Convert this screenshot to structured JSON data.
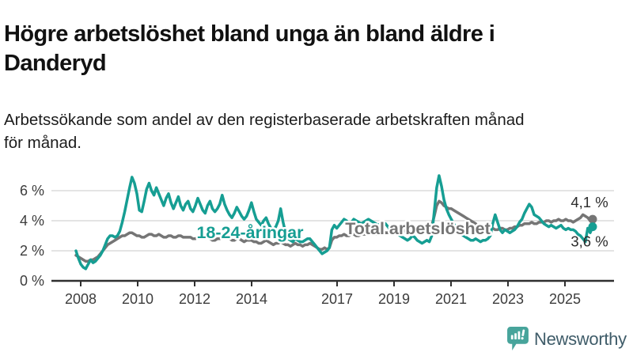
{
  "header": {
    "title_lines": [
      "Högre arbetslöshet bland unga än bland äldre i",
      "Danderyd"
    ],
    "subtitle_lines": [
      "Arbetssökande som andel av den registerbaserade arbetskraften månad",
      "för månad."
    ]
  },
  "footer": {
    "brand": "Newsworthy"
  },
  "colors": {
    "grid": "#dcdcdc",
    "axis": "#2f2f2f",
    "tick_text": "#3c3c3c",
    "annotation_text": "#2b2b2b",
    "brand_icon": "#47a49b",
    "brand_text": "#3f5c69"
  },
  "chart_data": {
    "type": "line",
    "unit": "percent",
    "frequency": "monthly",
    "start": "2008-01",
    "end": "2025-09",
    "grid": true,
    "legend_position": "inline-labels",
    "y_axis": {
      "tick_labels": [
        "0 %",
        "2 %",
        "4 %",
        "6 %"
      ],
      "tick_values": [
        0,
        2,
        4,
        6
      ],
      "max": 7.5
    },
    "x_axis": {
      "tick_years": [
        2008,
        2010,
        2012,
        2014,
        2017,
        2019,
        2021,
        2023,
        2025
      ]
    },
    "series": [
      {
        "name": "18-24-åringar",
        "color": "#169e93",
        "end_label": "3,6 %",
        "end_value": 3.6,
        "values": [
          2.0,
          1.5,
          1.1,
          0.9,
          0.8,
          1.1,
          1.4,
          1.2,
          1.3,
          1.5,
          1.7,
          2.0,
          2.4,
          2.8,
          3.0,
          3.0,
          2.9,
          3.0,
          3.3,
          3.9,
          4.6,
          5.4,
          6.2,
          6.9,
          6.5,
          5.8,
          4.7,
          4.6,
          5.3,
          6.1,
          6.5,
          6.0,
          5.7,
          6.2,
          5.8,
          5.4,
          5.0,
          5.5,
          5.8,
          5.2,
          4.8,
          5.2,
          5.6,
          5.0,
          4.7,
          5.1,
          5.3,
          4.8,
          4.6,
          5.0,
          5.5,
          5.1,
          4.7,
          4.5,
          5.0,
          5.3,
          4.8,
          4.6,
          4.8,
          5.1,
          5.7,
          5.1,
          4.7,
          4.4,
          4.2,
          4.5,
          4.9,
          4.6,
          4.3,
          4.1,
          4.3,
          4.7,
          5.2,
          4.6,
          4.1,
          3.9,
          3.7,
          4.0,
          4.2,
          3.8,
          3.5,
          3.4,
          3.6,
          4.0,
          4.8,
          3.9,
          3.2,
          2.8,
          2.7,
          2.6,
          2.8,
          2.7,
          2.6,
          2.6,
          2.7,
          2.8,
          2.8,
          2.6,
          2.4,
          2.2,
          2.0,
          1.8,
          1.9,
          2.0,
          2.2,
          3.4,
          3.7,
          3.5,
          3.7,
          3.9,
          4.1,
          4.0,
          3.8,
          3.9,
          4.1,
          4.0,
          3.9,
          3.8,
          3.9,
          4.0,
          4.1,
          4.0,
          3.9,
          3.8,
          3.7,
          3.8,
          3.9,
          3.8,
          3.6,
          3.4,
          3.3,
          3.2,
          3.1,
          3.0,
          2.9,
          2.8,
          2.7,
          2.8,
          3.0,
          2.9,
          2.7,
          2.6,
          2.5,
          2.6,
          2.7,
          2.6,
          3.0,
          4.6,
          6.2,
          7.0,
          6.3,
          5.4,
          4.8,
          4.4,
          4.1,
          3.8,
          3.5,
          3.3,
          3.1,
          3.0,
          2.9,
          2.8,
          2.7,
          2.7,
          2.8,
          2.7,
          2.6,
          2.7,
          2.7,
          2.8,
          3.0,
          3.8,
          4.4,
          3.9,
          3.4,
          3.2,
          3.4,
          3.3,
          3.2,
          3.3,
          3.4,
          3.6,
          3.9,
          4.1,
          4.5,
          4.8,
          5.1,
          4.9,
          4.4,
          4.3,
          4.2,
          4.0,
          3.8,
          3.7,
          3.6,
          3.7,
          3.6,
          3.5,
          3.6,
          3.7,
          3.5,
          3.4,
          3.5,
          3.4,
          3.4,
          3.3,
          3.1,
          3.0,
          2.8,
          2.6,
          3.5,
          3.2,
          3.6
        ]
      },
      {
        "name": "Total arbetslöshet",
        "color": "#757575",
        "end_label": "4,1 %",
        "end_value": 4.1,
        "values": [
          1.7,
          1.6,
          1.5,
          1.4,
          1.3,
          1.3,
          1.4,
          1.4,
          1.5,
          1.6,
          1.8,
          2.0,
          2.2,
          2.4,
          2.5,
          2.6,
          2.7,
          2.8,
          2.9,
          3.0,
          3.0,
          3.1,
          3.2,
          3.2,
          3.1,
          3.0,
          3.0,
          2.9,
          2.9,
          3.0,
          3.1,
          3.1,
          3.0,
          3.0,
          3.1,
          3.0,
          2.9,
          2.9,
          3.0,
          3.0,
          2.9,
          2.9,
          3.0,
          3.0,
          2.9,
          2.9,
          2.9,
          2.9,
          2.8,
          2.8,
          2.9,
          2.9,
          2.8,
          2.8,
          2.9,
          2.8,
          2.7,
          2.7,
          2.8,
          2.8,
          2.9,
          2.9,
          2.8,
          2.8,
          2.7,
          2.7,
          2.8,
          2.8,
          2.7,
          2.6,
          2.7,
          2.7,
          2.7,
          2.6,
          2.6,
          2.5,
          2.5,
          2.6,
          2.7,
          2.6,
          2.5,
          2.4,
          2.5,
          2.5,
          2.6,
          2.5,
          2.4,
          2.4,
          2.3,
          2.4,
          2.5,
          2.4,
          2.4,
          2.3,
          2.4,
          2.4,
          2.5,
          2.4,
          2.3,
          2.2,
          2.1,
          2.1,
          2.2,
          2.1,
          2.2,
          2.7,
          2.9,
          2.9,
          3.0,
          3.0,
          3.1,
          3.0,
          3.0,
          3.1,
          3.1,
          3.0,
          3.0,
          3.1,
          3.1,
          3.1,
          3.2,
          3.2,
          3.1,
          3.1,
          3.2,
          3.2,
          3.3,
          3.2,
          3.2,
          3.3,
          3.3,
          3.3,
          3.3,
          3.4,
          3.4,
          3.3,
          3.4,
          3.4,
          3.5,
          3.4,
          3.4,
          3.5,
          3.5,
          3.4,
          3.4,
          3.5,
          3.7,
          4.3,
          5.0,
          5.3,
          5.2,
          5.0,
          4.9,
          4.8,
          4.8,
          4.7,
          4.6,
          4.5,
          4.4,
          4.3,
          4.2,
          4.1,
          4.0,
          3.9,
          3.8,
          3.6,
          3.5,
          3.4,
          3.4,
          3.4,
          3.5,
          3.5,
          3.4,
          3.4,
          3.5,
          3.5,
          3.4,
          3.4,
          3.5,
          3.5,
          3.6,
          3.6,
          3.7,
          3.7,
          3.8,
          3.8,
          3.8,
          3.9,
          3.8,
          3.8,
          3.9,
          3.9,
          3.9,
          4.0,
          4.0,
          3.9,
          4.0,
          4.0,
          4.1,
          4.0,
          4.0,
          4.1,
          4.0,
          4.0,
          3.9,
          4.0,
          4.1,
          4.2,
          4.4,
          4.3,
          4.2,
          4.0,
          4.1
        ]
      }
    ]
  }
}
